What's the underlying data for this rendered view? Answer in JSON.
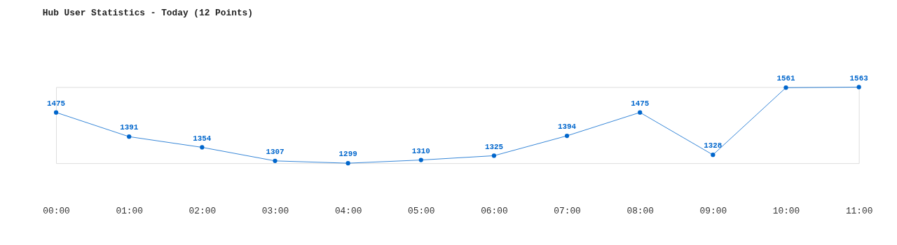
{
  "chart_data": {
    "type": "line",
    "title": "Hub User Statistics - Today (12 Points)",
    "categories": [
      "00:00",
      "01:00",
      "02:00",
      "03:00",
      "04:00",
      "05:00",
      "06:00",
      "07:00",
      "08:00",
      "09:00",
      "10:00",
      "11:00"
    ],
    "series": [
      {
        "color": "#0066cc",
        "values": [
          1475,
          1391,
          1354,
          1307,
          1299,
          1310,
          1325,
          1394,
          1475,
          1328,
          1561,
          1563
        ]
      }
    ],
    "data_labels": true,
    "marker": "circle",
    "line_style": "solid",
    "grid": false,
    "tick_labels": "x"
  }
}
